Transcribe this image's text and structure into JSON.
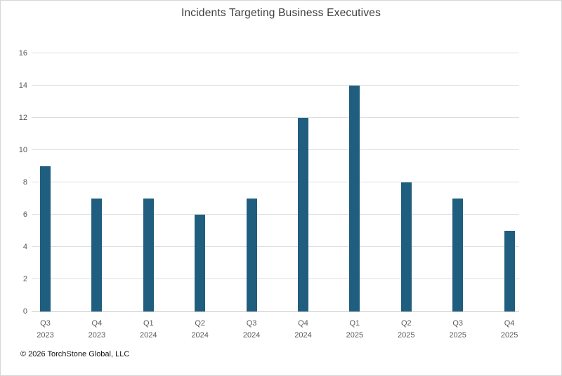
{
  "title": "Incidents Targeting Business Executives",
  "footer": "© 2026 TorchStone Global, LLC",
  "colors": {
    "bar": "#1F5E7E",
    "gridline": "#DEDEDE",
    "axis_line": "#C6C6C6",
    "tick_label": "#595959",
    "title_text": "#3D3D3D"
  },
  "chart_data": {
    "type": "bar",
    "title": "Incidents Targeting Business Executives",
    "categories": [
      "Q3 2023",
      "Q4 2023",
      "Q1 2024",
      "Q2 2024",
      "Q3 2024",
      "Q4 2024",
      "Q1 2025",
      "Q2 2025",
      "Q3 2025",
      "Q4 2025"
    ],
    "values": [
      9,
      7,
      7,
      6,
      7,
      12,
      14,
      8,
      7,
      5
    ],
    "xlabel": "",
    "ylabel": "",
    "ylim": [
      0,
      16
    ],
    "ytick_step": 2,
    "grid": true,
    "legend": false,
    "bar_color": "#1F5E7E"
  }
}
